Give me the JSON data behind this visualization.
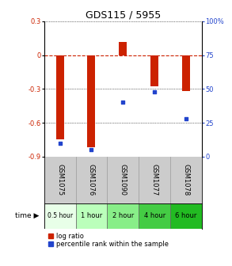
{
  "title": "GDS115 / 5955",
  "samples": [
    "GSM1075",
    "GSM1076",
    "GSM1090",
    "GSM1077",
    "GSM1078"
  ],
  "time_labels": [
    "0.5 hour",
    "1 hour",
    "2 hour",
    "4 hour",
    "6 hour"
  ],
  "log_ratios": [
    -0.75,
    -0.82,
    0.12,
    -0.28,
    -0.32
  ],
  "percentile_ranks": [
    10,
    5,
    40,
    48,
    28
  ],
  "ylim_left": [
    -0.9,
    0.3
  ],
  "ylim_right": [
    0,
    100
  ],
  "yticks_left": [
    -0.9,
    -0.6,
    -0.3,
    0.0,
    0.3
  ],
  "yticks_right": [
    0,
    25,
    50,
    75,
    100
  ],
  "bar_color": "#cc2200",
  "dot_color": "#2244cc",
  "zero_line_color": "#cc2200",
  "grid_color": "#000000",
  "bg_color": "#ffffff",
  "sample_bg": "#cccccc",
  "title_fontsize": 9,
  "tick_fontsize": 6,
  "sample_fontsize": 6,
  "time_fontsize": 6,
  "legend_fontsize": 6,
  "time_colors": [
    "#e8ffe8",
    "#bbffbb",
    "#88ee88",
    "#44cc44",
    "#22bb22"
  ]
}
